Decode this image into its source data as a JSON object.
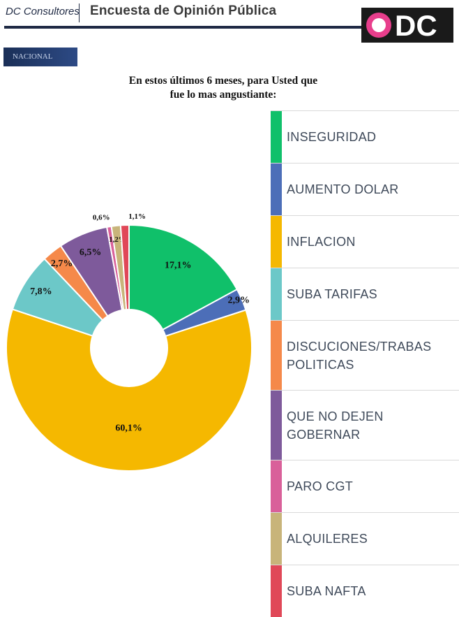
{
  "header": {
    "brand": "DC Consultores",
    "survey_title": "Encuesta de Opinión Pública",
    "logo_text": "DC"
  },
  "badge": "NACIONAL",
  "chart_data": {
    "type": "pie",
    "title_lines": [
      "En estos últimos 6 meses,  para Usted que",
      "fue lo mas angustiante:"
    ],
    "slices": [
      {
        "label": "INSEGURIDAD",
        "value": 17.1,
        "display": "17,1%",
        "color": "#10c06a"
      },
      {
        "label": "AUMENTO DOLAR",
        "value": 2.9,
        "display": "2,9%",
        "color": "#4c6eb8"
      },
      {
        "label": "INFLACION",
        "value": 60.1,
        "display": "60,1%",
        "color": "#f5b800"
      },
      {
        "label": "SUBA TARIFAS",
        "value": 7.8,
        "display": "7,8%",
        "color": "#6cc8c8"
      },
      {
        "label": "DISCUCIONES/TRABAS POLITICAS",
        "value": 2.7,
        "display": "2,7%",
        "color": "#f5894a"
      },
      {
        "label": "QUE NO DEJEN GOBERNAR",
        "value": 6.5,
        "display": "6,5%",
        "color": "#7e5a9b"
      },
      {
        "label": "PARO CGT",
        "value": 0.6,
        "display": "0,6%",
        "color": "#d9609a"
      },
      {
        "label": "ALQUILERES",
        "value": 1.2,
        "display": "1,2%",
        "color": "#c8b47a"
      },
      {
        "label": "SUBA NAFTA",
        "value": 1.1,
        "display": "1,1%",
        "color": "#e04858"
      }
    ],
    "legend_position": "right"
  }
}
